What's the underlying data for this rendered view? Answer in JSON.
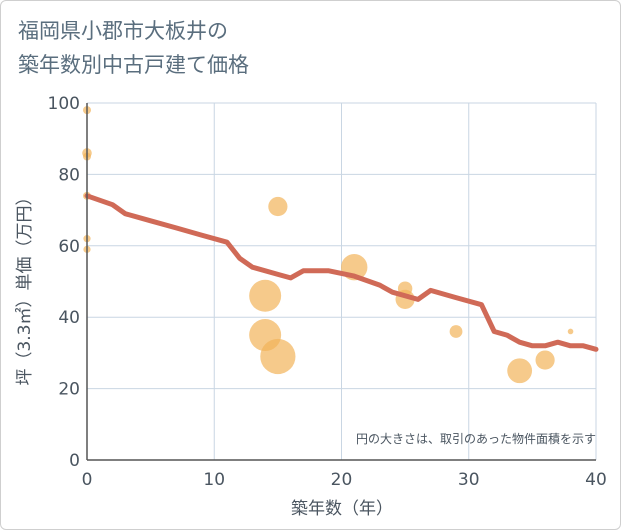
{
  "chart_data": {
    "type": "scatter",
    "title_line1": "福岡県小郡市大板井の",
    "title_line2": "築年数別中古戸建て価格",
    "xlabel": "築年数（年）",
    "ylabel": "坪（3.3㎡）単価（万円）",
    "xlim": [
      0,
      40
    ],
    "ylim": [
      0,
      100
    ],
    "x_ticks": [
      0,
      10,
      20,
      30,
      40
    ],
    "y_ticks": [
      0,
      20,
      40,
      60,
      80,
      100
    ],
    "note": "円の大きさは、取引のあった物件面積を示す",
    "colors": {
      "bubble": "#f2b35a",
      "line": "#d06a57",
      "grid": "#c9d6e3",
      "axis": "#555555"
    },
    "points": [
      {
        "x": 0,
        "y": 98,
        "size": 1.0
      },
      {
        "x": 0,
        "y": 86,
        "size": 1.2
      },
      {
        "x": 0,
        "y": 85,
        "size": 1.0
      },
      {
        "x": 0,
        "y": 74,
        "size": 1.0
      },
      {
        "x": 0,
        "y": 62,
        "size": 0.9
      },
      {
        "x": 0,
        "y": 59,
        "size": 0.9
      },
      {
        "x": 15,
        "y": 71,
        "size": 2.4
      },
      {
        "x": 14,
        "y": 46,
        "size": 4.0
      },
      {
        "x": 14,
        "y": 35,
        "size": 4.0
      },
      {
        "x": 15,
        "y": 29,
        "size": 4.4
      },
      {
        "x": 21,
        "y": 54,
        "size": 3.3
      },
      {
        "x": 25,
        "y": 48,
        "size": 1.8
      },
      {
        "x": 25,
        "y": 45,
        "size": 2.4
      },
      {
        "x": 29,
        "y": 36,
        "size": 1.6
      },
      {
        "x": 34,
        "y": 25,
        "size": 3.1
      },
      {
        "x": 36,
        "y": 28,
        "size": 2.4
      },
      {
        "x": 38,
        "y": 36,
        "size": 0.7
      }
    ],
    "trend": [
      [
        0,
        74
      ],
      [
        2,
        71.5
      ],
      [
        3,
        69
      ],
      [
        5,
        67
      ],
      [
        7,
        65
      ],
      [
        9,
        63
      ],
      [
        11,
        61
      ],
      [
        12,
        56.5
      ],
      [
        13,
        54
      ],
      [
        15,
        52
      ],
      [
        16,
        51
      ],
      [
        17,
        53
      ],
      [
        19,
        53
      ],
      [
        21,
        51.5
      ],
      [
        23,
        49
      ],
      [
        24,
        47
      ],
      [
        26,
        45
      ],
      [
        27,
        47.5
      ],
      [
        29,
        45.5
      ],
      [
        31,
        43.5
      ],
      [
        32,
        36
      ],
      [
        33,
        35
      ],
      [
        34,
        33
      ],
      [
        35,
        32
      ],
      [
        36,
        32
      ],
      [
        37,
        33
      ],
      [
        38,
        32
      ],
      [
        39,
        32
      ],
      [
        40,
        31
      ]
    ]
  }
}
